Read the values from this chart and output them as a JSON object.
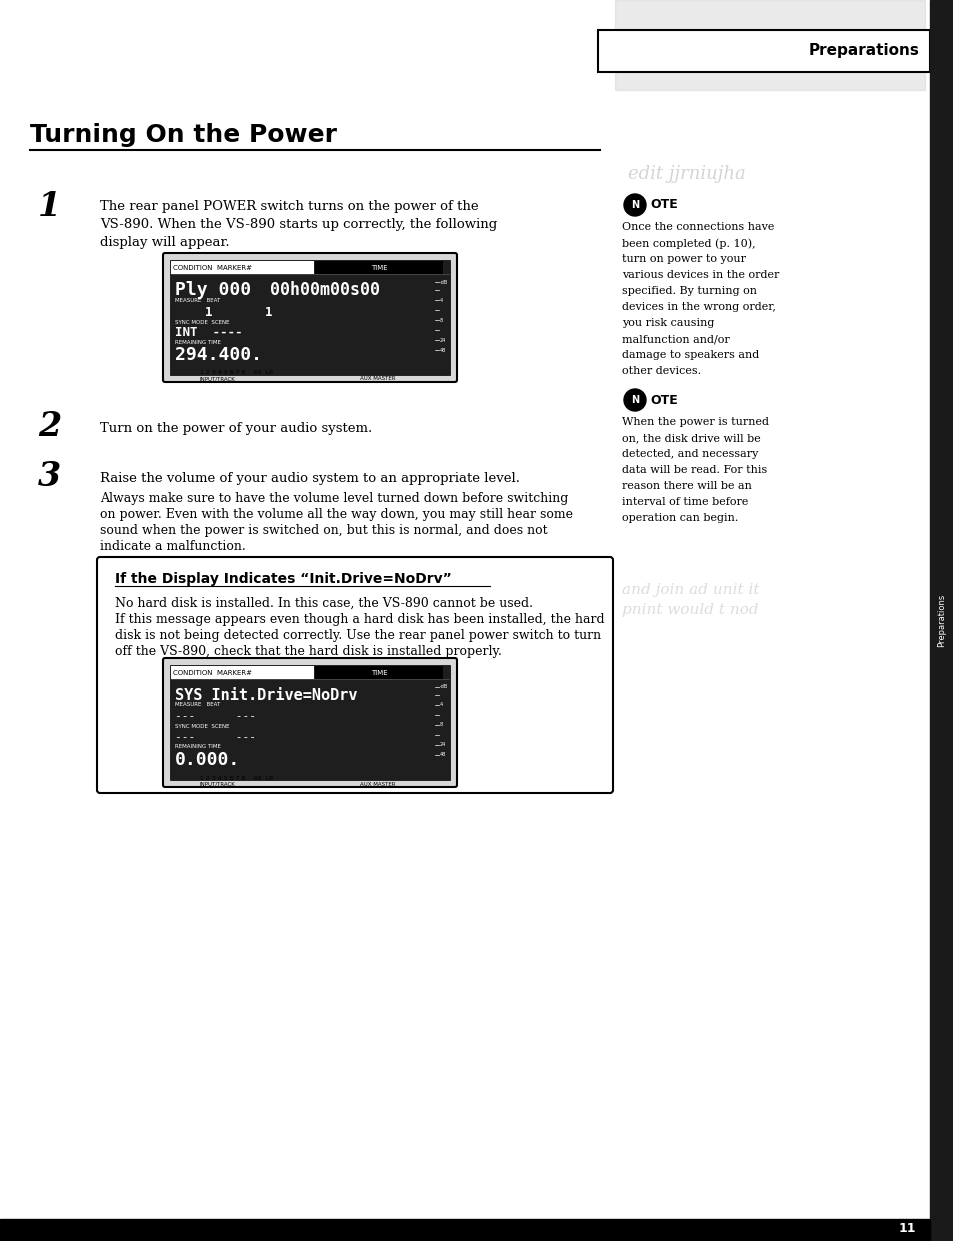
{
  "bg_color": "#ffffff",
  "title": "Turning On the Power",
  "header_label": "Preparations",
  "page_number": "11",
  "sidebar_color": "#1a1a1a",
  "step1_number": "1",
  "step1_text_line1": "The rear panel POWER switch turns on the power of the",
  "step1_text_line2": "VS-890. When the VS-890 starts up correctly, the following",
  "step1_text_line3": "display will appear.",
  "step2_number": "2",
  "step2_text": "Turn on the power of your audio system.",
  "step3_number": "3",
  "step3_text_line1": "Raise the volume of your audio system to an appropriate level.",
  "step3_text_line2": "Always make sure to have the volume level turned down before switching",
  "step3_text_line3": "on power. Even with the volume all the way down, you may still hear some",
  "step3_text_line4": "sound when the power is switched on, but this is normal, and does not",
  "step3_text_line5": "indicate a malfunction.",
  "note1_lines": [
    "Once the connections have",
    "been completed (p. 10),",
    "turn on power to your",
    "various devices in the order",
    "specified. By turning on",
    "devices in the wrong order,",
    "you risk causing",
    "malfunction and/or",
    "damage to speakers and",
    "other devices."
  ],
  "note2_lines": [
    "When the power is turned",
    "on, the disk drive will be",
    "detected, and necessary",
    "data will be read. For this",
    "reason there will be an",
    "interval of time before",
    "operation can begin."
  ],
  "nodrv_box_title": "If the Display Indicates “Init.Drive=NoDrv”",
  "nodrv_line1": "No hard disk is installed. In this case, the VS-890 cannot be used.",
  "nodrv_line2": "If this message appears even though a hard disk has been installed, the hard",
  "nodrv_line3": "disk is not being detected correctly. Use the rear panel power switch to turn",
  "nodrv_line4": "off the VS-890, check that the hard disk is installed properly."
}
